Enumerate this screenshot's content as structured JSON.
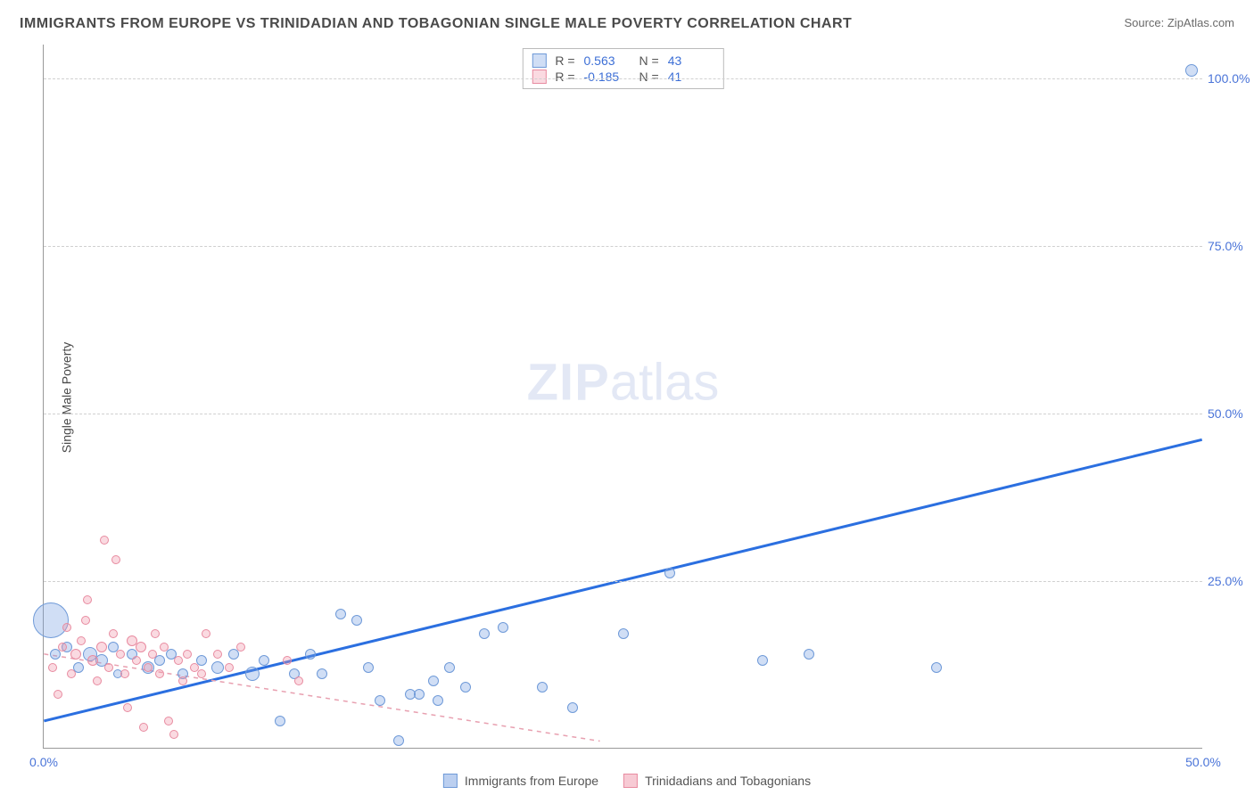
{
  "title": "IMMIGRANTS FROM EUROPE VS TRINIDADIAN AND TOBAGONIAN SINGLE MALE POVERTY CORRELATION CHART",
  "source": "Source: ZipAtlas.com",
  "ylabel": "Single Male Poverty",
  "watermark_zip": "ZIP",
  "watermark_atlas": "atlas",
  "chart": {
    "type": "scatter",
    "xlim": [
      0,
      50
    ],
    "ylim": [
      0,
      105
    ],
    "y_ticks": [
      25,
      50,
      75,
      100
    ],
    "y_tick_labels": [
      "25.0%",
      "50.0%",
      "75.0%",
      "100.0%"
    ],
    "x_ticks": [
      0,
      50
    ],
    "x_tick_labels": [
      "0.0%",
      "50.0%"
    ],
    "grid_color": "#d0d0d0",
    "background_color": "#ffffff",
    "axis_color": "#999999"
  },
  "series": [
    {
      "label": "Immigrants from Europe",
      "fill": "rgba(120,160,225,0.35)",
      "stroke": "#6f9ad8",
      "r_label": "R =",
      "r_value": "0.563",
      "n_label": "N =",
      "n_value": "43",
      "trend": {
        "x1": 0,
        "y1": 4,
        "x2": 50,
        "y2": 46,
        "color": "#2b6fe0",
        "width": 3,
        "dash": ""
      },
      "points": [
        {
          "x": 0.3,
          "y": 19,
          "r": 20
        },
        {
          "x": 0.5,
          "y": 14,
          "r": 6
        },
        {
          "x": 1.0,
          "y": 15,
          "r": 6
        },
        {
          "x": 1.5,
          "y": 12,
          "r": 6
        },
        {
          "x": 2.0,
          "y": 14,
          "r": 8
        },
        {
          "x": 2.5,
          "y": 13,
          "r": 7
        },
        {
          "x": 3.0,
          "y": 15,
          "r": 6
        },
        {
          "x": 3.2,
          "y": 11,
          "r": 5
        },
        {
          "x": 3.8,
          "y": 14,
          "r": 6
        },
        {
          "x": 4.5,
          "y": 12,
          "r": 7
        },
        {
          "x": 5.0,
          "y": 13,
          "r": 6
        },
        {
          "x": 5.5,
          "y": 14,
          "r": 6
        },
        {
          "x": 6.0,
          "y": 11,
          "r": 6
        },
        {
          "x": 6.8,
          "y": 13,
          "r": 6
        },
        {
          "x": 7.5,
          "y": 12,
          "r": 7
        },
        {
          "x": 8.2,
          "y": 14,
          "r": 6
        },
        {
          "x": 9.0,
          "y": 11,
          "r": 8
        },
        {
          "x": 9.5,
          "y": 13,
          "r": 6
        },
        {
          "x": 10.2,
          "y": 4,
          "r": 6
        },
        {
          "x": 10.8,
          "y": 11,
          "r": 6
        },
        {
          "x": 11.5,
          "y": 14,
          "r": 6
        },
        {
          "x": 12.0,
          "y": 11,
          "r": 6
        },
        {
          "x": 12.8,
          "y": 20,
          "r": 6
        },
        {
          "x": 13.5,
          "y": 19,
          "r": 6
        },
        {
          "x": 14.0,
          "y": 12,
          "r": 6
        },
        {
          "x": 14.5,
          "y": 7,
          "r": 6
        },
        {
          "x": 15.3,
          "y": 1,
          "r": 6
        },
        {
          "x": 15.8,
          "y": 8,
          "r": 6
        },
        {
          "x": 16.2,
          "y": 8,
          "r": 6
        },
        {
          "x": 16.8,
          "y": 10,
          "r": 6
        },
        {
          "x": 17.0,
          "y": 7,
          "r": 6
        },
        {
          "x": 17.5,
          "y": 12,
          "r": 6
        },
        {
          "x": 18.2,
          "y": 9,
          "r": 6
        },
        {
          "x": 19.0,
          "y": 17,
          "r": 6
        },
        {
          "x": 19.8,
          "y": 18,
          "r": 6
        },
        {
          "x": 21.5,
          "y": 9,
          "r": 6
        },
        {
          "x": 22.8,
          "y": 6,
          "r": 6
        },
        {
          "x": 25.0,
          "y": 17,
          "r": 6
        },
        {
          "x": 27.0,
          "y": 26,
          "r": 6
        },
        {
          "x": 31.0,
          "y": 13,
          "r": 6
        },
        {
          "x": 33.0,
          "y": 14,
          "r": 6
        },
        {
          "x": 38.5,
          "y": 12,
          "r": 6
        },
        {
          "x": 49.5,
          "y": 101,
          "r": 7
        }
      ]
    },
    {
      "label": "Trinidadians and Tobagonians",
      "fill": "rgba(240,150,170,0.35)",
      "stroke": "#e88ba0",
      "r_label": "R =",
      "r_value": "-0.185",
      "n_label": "N =",
      "n_value": "41",
      "trend": {
        "x1": 0,
        "y1": 14,
        "x2": 24,
        "y2": 1,
        "color": "#e8a0b0",
        "width": 1.5,
        "dash": "5,5"
      },
      "points": [
        {
          "x": 0.4,
          "y": 12,
          "r": 5
        },
        {
          "x": 0.6,
          "y": 8,
          "r": 5
        },
        {
          "x": 0.8,
          "y": 15,
          "r": 5
        },
        {
          "x": 1.0,
          "y": 18,
          "r": 5
        },
        {
          "x": 1.2,
          "y": 11,
          "r": 5
        },
        {
          "x": 1.4,
          "y": 14,
          "r": 6
        },
        {
          "x": 1.6,
          "y": 16,
          "r": 5
        },
        {
          "x": 1.8,
          "y": 19,
          "r": 5
        },
        {
          "x": 1.9,
          "y": 22,
          "r": 5
        },
        {
          "x": 2.1,
          "y": 13,
          "r": 6
        },
        {
          "x": 2.3,
          "y": 10,
          "r": 5
        },
        {
          "x": 2.5,
          "y": 15,
          "r": 6
        },
        {
          "x": 2.6,
          "y": 31,
          "r": 5
        },
        {
          "x": 2.8,
          "y": 12,
          "r": 5
        },
        {
          "x": 3.0,
          "y": 17,
          "r": 5
        },
        {
          "x": 3.1,
          "y": 28,
          "r": 5
        },
        {
          "x": 3.3,
          "y": 14,
          "r": 5
        },
        {
          "x": 3.5,
          "y": 11,
          "r": 5
        },
        {
          "x": 3.6,
          "y": 6,
          "r": 5
        },
        {
          "x": 3.8,
          "y": 16,
          "r": 6
        },
        {
          "x": 4.0,
          "y": 13,
          "r": 5
        },
        {
          "x": 4.2,
          "y": 15,
          "r": 6
        },
        {
          "x": 4.3,
          "y": 3,
          "r": 5
        },
        {
          "x": 4.5,
          "y": 12,
          "r": 5
        },
        {
          "x": 4.7,
          "y": 14,
          "r": 5
        },
        {
          "x": 4.8,
          "y": 17,
          "r": 5
        },
        {
          "x": 5.0,
          "y": 11,
          "r": 5
        },
        {
          "x": 5.2,
          "y": 15,
          "r": 5
        },
        {
          "x": 5.4,
          "y": 4,
          "r": 5
        },
        {
          "x": 5.6,
          "y": 2,
          "r": 5
        },
        {
          "x": 5.8,
          "y": 13,
          "r": 5
        },
        {
          "x": 6.0,
          "y": 10,
          "r": 5
        },
        {
          "x": 6.2,
          "y": 14,
          "r": 5
        },
        {
          "x": 6.5,
          "y": 12,
          "r": 5
        },
        {
          "x": 6.8,
          "y": 11,
          "r": 5
        },
        {
          "x": 7.0,
          "y": 17,
          "r": 5
        },
        {
          "x": 7.5,
          "y": 14,
          "r": 5
        },
        {
          "x": 8.0,
          "y": 12,
          "r": 5
        },
        {
          "x": 8.5,
          "y": 15,
          "r": 5
        },
        {
          "x": 10.5,
          "y": 13,
          "r": 5
        },
        {
          "x": 11.0,
          "y": 10,
          "r": 5
        }
      ]
    }
  ],
  "bottom_legend": [
    {
      "label": "Immigrants from Europe",
      "fill": "rgba(120,160,225,0.5)",
      "stroke": "#6f9ad8"
    },
    {
      "label": "Trinidadians and Tobagonians",
      "fill": "rgba(240,150,170,0.5)",
      "stroke": "#e88ba0"
    }
  ]
}
